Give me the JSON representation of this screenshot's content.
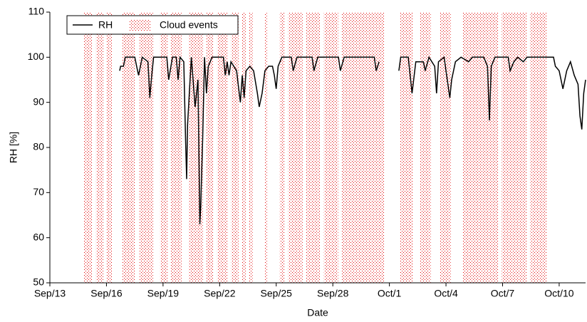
{
  "chart_data": {
    "type": "line",
    "x_label": "Date",
    "y_label": "RH [%]",
    "xlim": [
      0,
      28.4
    ],
    "xticks": [
      {
        "value": 0,
        "label": "Sep/13"
      },
      {
        "value": 3,
        "label": "Sep/16"
      },
      {
        "value": 6,
        "label": "Sep/19"
      },
      {
        "value": 9,
        "label": "Sep/22"
      },
      {
        "value": 12,
        "label": "Sep/25"
      },
      {
        "value": 15,
        "label": "Sep/28"
      },
      {
        "value": 18,
        "label": "Oct/1"
      },
      {
        "value": 21,
        "label": "Oct/4"
      },
      {
        "value": 24,
        "label": "Oct/7"
      },
      {
        "value": 27,
        "label": "Oct/10"
      }
    ],
    "ylim": [
      50,
      110
    ],
    "yticks": [
      50,
      60,
      70,
      80,
      90,
      100,
      110
    ],
    "legend": "top-left",
    "series": [
      {
        "name": "RH",
        "color": "#000000",
        "x": [
          3.7,
          3.75,
          3.9,
          4.0,
          4.5,
          4.6,
          4.7,
          4.8,
          4.9,
          5.2,
          5.3,
          5.4,
          5.5,
          6.2,
          6.3,
          6.5,
          6.7,
          6.8,
          6.9,
          7.1,
          7.2,
          7.25,
          7.3,
          7.5,
          7.7,
          7.85,
          7.95,
          8.0,
          8.1,
          8.2,
          8.3,
          8.4,
          8.6,
          9.2,
          9.3,
          9.4,
          9.5,
          9.6,
          9.9,
          10.1,
          10.2,
          10.3,
          10.4,
          10.6,
          10.8,
          11.0,
          11.1,
          11.25,
          11.4,
          11.6,
          11.8,
          11.9,
          12.0,
          12.1,
          12.3,
          12.8,
          12.9,
          13.1,
          13.9,
          14.0,
          14.2,
          15.3,
          15.4,
          15.6,
          17.2,
          17.3,
          17.45,
          18.0,
          18.5,
          18.6,
          19.0,
          19.2,
          19.4,
          19.8,
          19.9,
          20.1,
          20.4,
          20.5,
          20.6,
          20.9,
          21.2,
          21.3,
          21.5,
          21.8,
          22.2,
          22.4,
          23.0,
          23.2,
          23.3,
          23.4,
          23.6,
          24.3,
          24.4,
          24.6,
          24.8,
          25.1,
          25.3,
          26.7,
          26.8,
          27.0,
          27.2,
          27.4,
          27.6,
          27.8,
          28.0,
          28.1,
          28.2,
          28.3,
          28.4
        ],
        "values": [
          97,
          98,
          98,
          100,
          100,
          98,
          96,
          98,
          100,
          99,
          91,
          96,
          100,
          100,
          95,
          100,
          100,
          95,
          100,
          99,
          81,
          73,
          85,
          100,
          89,
          95,
          63,
          67,
          82,
          100,
          92,
          98,
          100,
          100,
          96,
          99,
          96,
          99,
          97,
          90,
          96,
          91,
          97,
          98,
          97,
          92,
          89,
          92,
          97,
          98,
          98,
          96,
          93,
          98,
          100,
          100,
          97,
          100,
          100,
          97,
          100,
          100,
          97,
          100,
          100,
          97,
          99,
          null,
          97,
          100,
          100,
          92,
          99,
          99,
          97,
          100,
          98,
          92,
          99,
          100,
          91,
          95,
          99,
          100,
          99,
          100,
          100,
          98,
          86,
          98,
          100,
          100,
          97,
          99,
          100,
          99,
          100,
          100,
          98,
          97,
          93,
          97,
          99,
          96,
          94,
          87,
          84,
          92,
          95
        ]
      }
    ],
    "cloud_events": {
      "name": "Cloud events",
      "color": "#e00000",
      "intervals": [
        [
          1.81,
          2.26
        ],
        [
          2.45,
          2.83
        ],
        [
          3.02,
          3.32
        ],
        [
          3.85,
          4.53
        ],
        [
          4.72,
          5.47
        ],
        [
          5.85,
          6.23
        ],
        [
          6.42,
          6.98
        ],
        [
          7.36,
          8.11
        ],
        [
          8.3,
          8.68
        ],
        [
          8.87,
          9.43
        ],
        [
          9.62,
          10.0
        ],
        [
          10.19,
          10.38
        ],
        [
          10.57,
          10.75
        ],
        [
          11.4,
          11.51
        ],
        [
          12.19,
          12.45
        ],
        [
          12.64,
          13.4
        ],
        [
          13.58,
          14.34
        ],
        [
          14.53,
          15.28
        ],
        [
          15.47,
          17.74
        ],
        [
          18.57,
          19.25
        ],
        [
          19.62,
          20.19
        ],
        [
          20.68,
          21.25
        ],
        [
          21.89,
          23.77
        ],
        [
          23.96,
          25.28
        ],
        [
          25.47,
          26.34
        ]
      ]
    }
  }
}
